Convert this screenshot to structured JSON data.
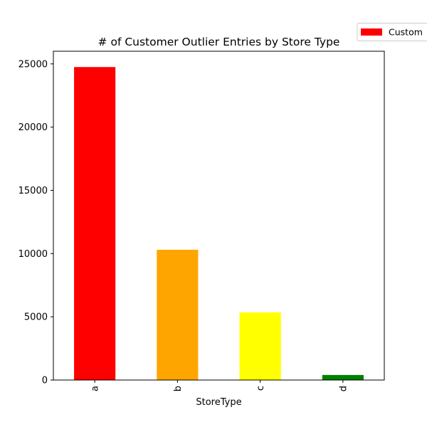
{
  "chart_data": {
    "type": "bar",
    "title": "# of Customer Outlier Entries by Store Type",
    "xlabel": "StoreType",
    "ylabel": "",
    "categories": [
      "a",
      "b",
      "c",
      "d"
    ],
    "series": [
      {
        "name": "Custom",
        "values": [
          24750,
          10300,
          5350,
          400
        ]
      }
    ],
    "bar_colors": [
      "#ff0000",
      "#ffa500",
      "#ffff00",
      "#008000"
    ],
    "legend_color": "#ff0000",
    "ylim": [
      0,
      26000
    ],
    "yticks": [
      0,
      5000,
      10000,
      15000,
      20000,
      25000
    ],
    "grid": false,
    "legend_position": "top-right"
  }
}
